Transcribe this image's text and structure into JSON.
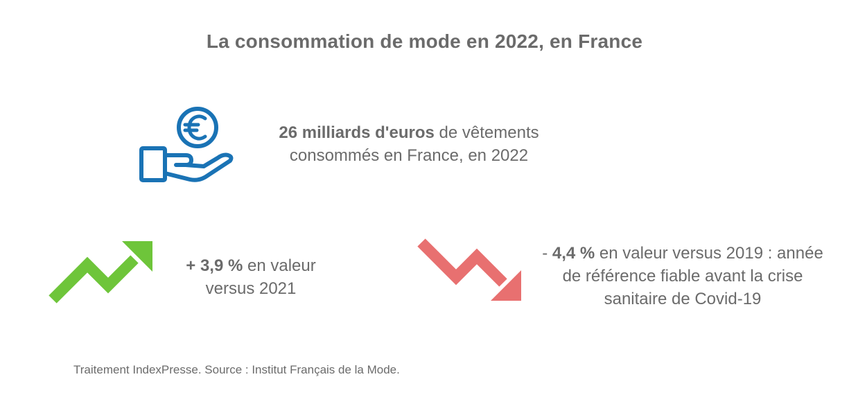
{
  "title": "La consommation de mode en 2022, en France",
  "stats": {
    "total": {
      "bold": "26 milliards d'euros",
      "rest_line1": " de vêtements",
      "line2": "consommés en France, en 2022",
      "icon": "euro-hand-icon"
    },
    "growth": {
      "bold": "+ 3,9 %",
      "rest_line1": " en valeur",
      "line2": "versus 2021",
      "icon": "trend-up-arrow-icon",
      "color": "#6ec53a"
    },
    "decline": {
      "prefix": "- ",
      "bold": "4,4 %",
      "rest_line1": " en valeur versus 2019 : année",
      "line2": "de référence fiable avant la crise",
      "line3": "sanitaire de Covid-19",
      "icon": "trend-down-arrow-icon",
      "color": "#e87070"
    }
  },
  "colors": {
    "icon_blue": "#1a73b5",
    "text": "#6b6b6b"
  },
  "source": "Traitement IndexPresse. Source : Institut Français de la Mode."
}
